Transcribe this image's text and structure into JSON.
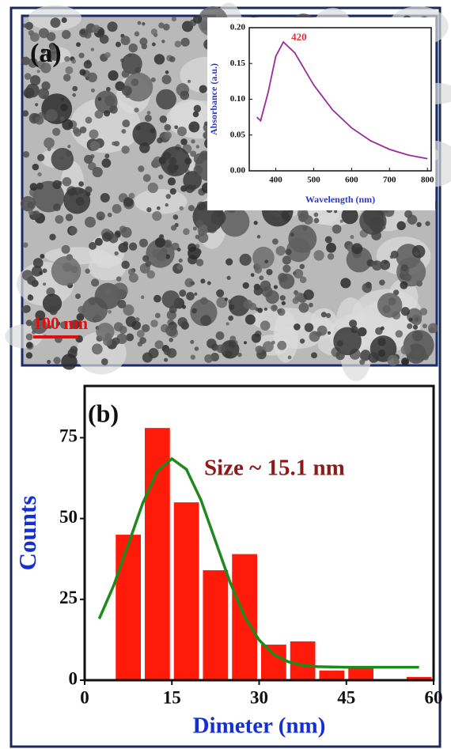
{
  "chart_data": [
    {
      "type": "line",
      "panel_label": "(a)",
      "scale_bar_label": "100 nm",
      "xlabel": "Wavelength (nm)",
      "ylabel": "Absorbance (a.u.)",
      "x": [
        350,
        360,
        380,
        400,
        420,
        450,
        500,
        550,
        600,
        650,
        700,
        750,
        800
      ],
      "values": [
        0.075,
        0.07,
        0.11,
        0.16,
        0.18,
        0.165,
        0.12,
        0.085,
        0.06,
        0.042,
        0.03,
        0.022,
        0.017
      ],
      "color": "#9b2a9b",
      "annotation": {
        "label": "420",
        "x": 420,
        "y": 0.18,
        "color": "#e03030"
      },
      "xlim": [
        330,
        810
      ],
      "ylim": [
        0,
        0.2
      ],
      "xticks": [
        400,
        500,
        600,
        700,
        800
      ],
      "yticks": [
        {
          "value": 0,
          "label": "0.00"
        },
        {
          "value": 0.05,
          "label": "0.05"
        },
        {
          "value": 0.1,
          "label": "0.10"
        },
        {
          "value": 0.15,
          "label": "0.15"
        },
        {
          "value": 0.2,
          "label": "0.20"
        }
      ]
    },
    {
      "type": "histogram",
      "panel_label": "(b)",
      "annotation": "Size ~ 15.1 nm",
      "xlabel": "Dimeter (nm)",
      "ylabel": "Counts",
      "bins": [
        5,
        10,
        15,
        20,
        25,
        30,
        35,
        40,
        45,
        50,
        55,
        60
      ],
      "values": [
        45,
        78,
        55,
        34,
        39,
        11,
        12,
        3,
        4,
        0,
        1
      ],
      "color": "#ff1a0a",
      "fit": {
        "color": "#1e8a1e",
        "x": [
          2.5,
          5,
          7.5,
          10,
          12.5,
          15,
          17.5,
          20,
          22.5,
          25,
          27.5,
          30,
          32.5,
          35,
          37.5,
          40,
          45,
          50,
          57.5
        ],
        "values": [
          19.0,
          29.3,
          42.0,
          54.8,
          64.6,
          68.5,
          65.2,
          55.7,
          43.0,
          30.3,
          19.7,
          12.4,
          8.0,
          5.7,
          4.6,
          4.2,
          4.0,
          4.0,
          4.0
        ]
      },
      "xlim": [
        0,
        60
      ],
      "ylim": [
        0,
        91
      ],
      "xticks": [
        0,
        15,
        30,
        45,
        60
      ],
      "yticks": [
        0,
        25,
        50,
        75
      ]
    }
  ]
}
